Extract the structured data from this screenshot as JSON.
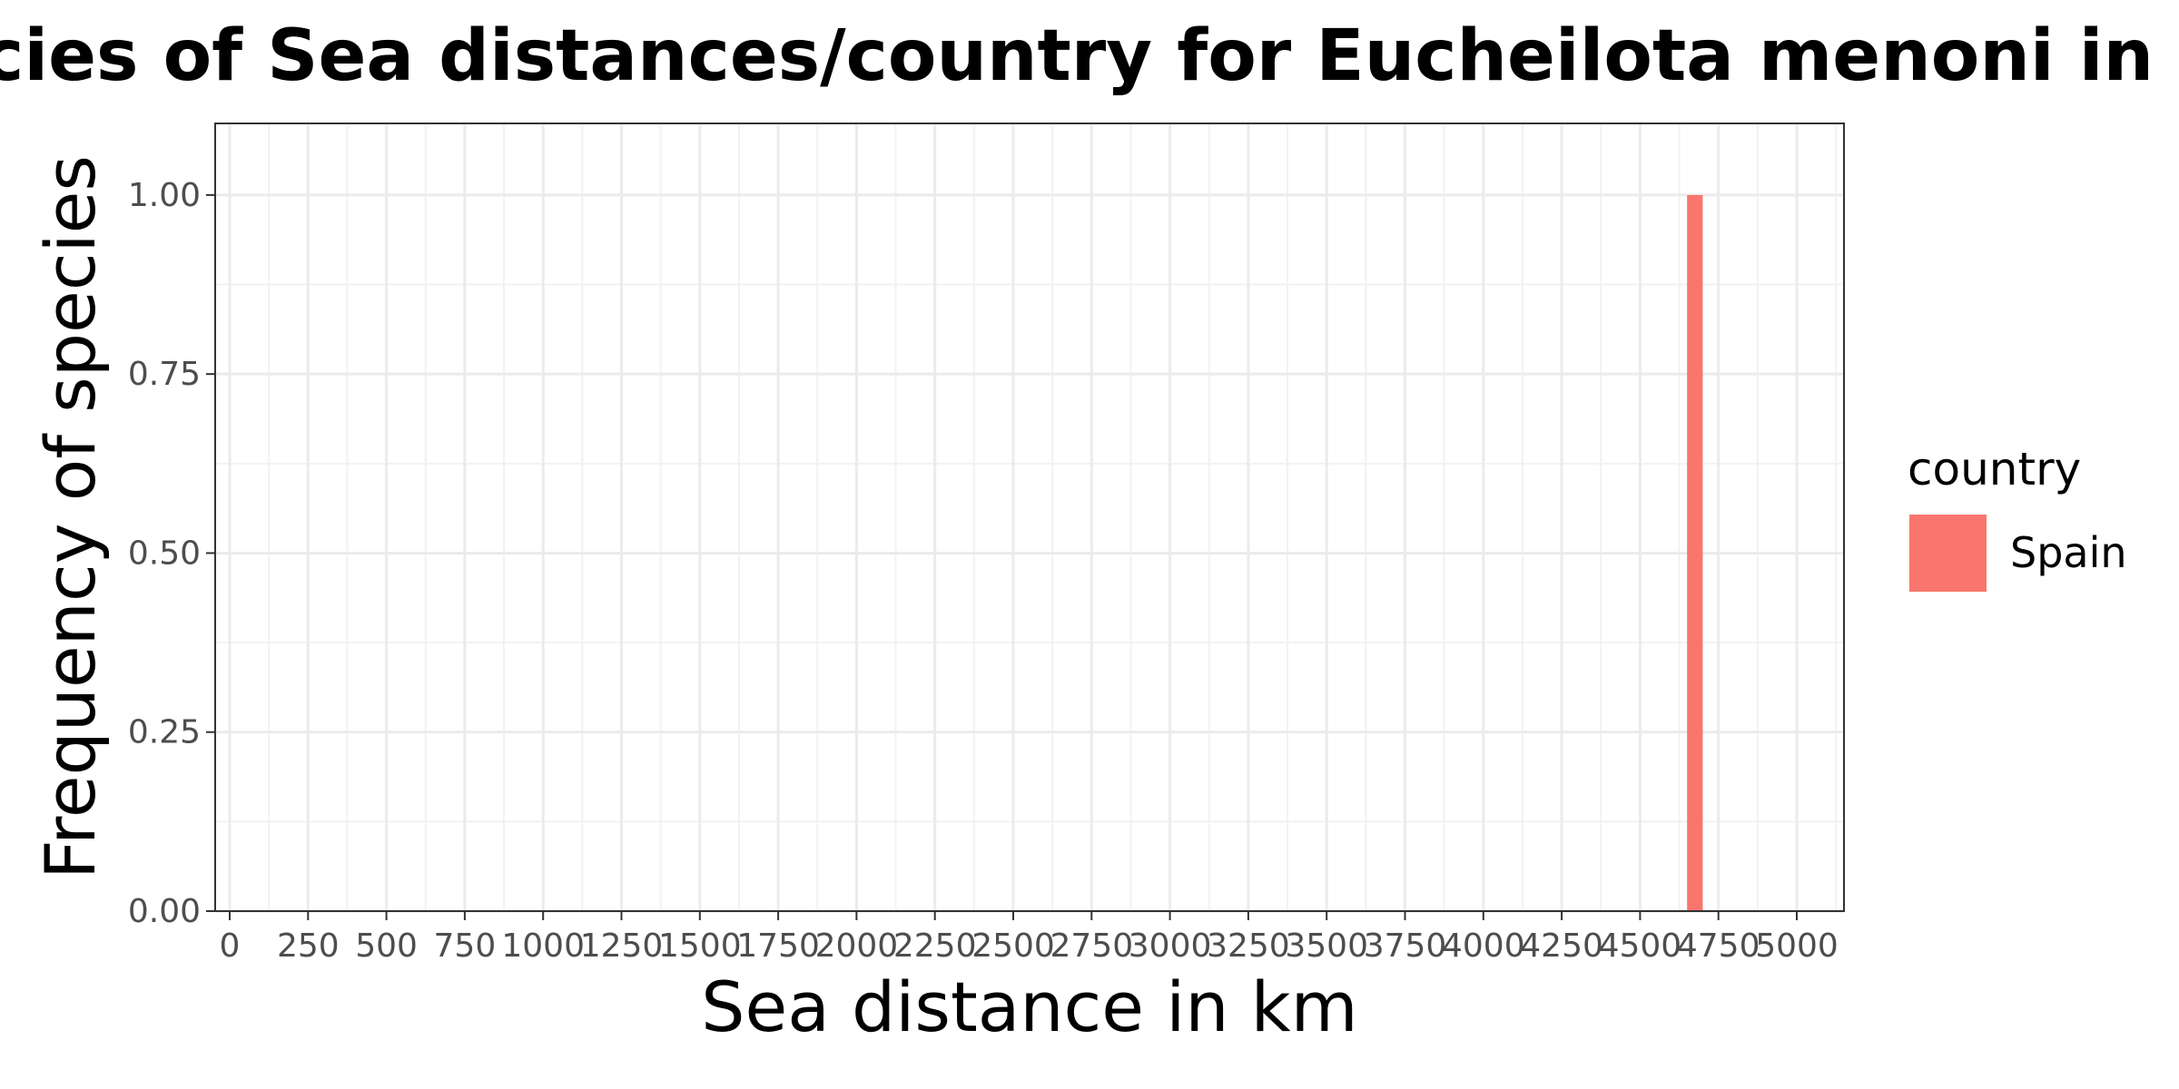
{
  "chart_data": {
    "type": "bar",
    "title": "Frequencies of Sea distances/country for Eucheilota menoni in Ravenna",
    "xlabel": "Sea distance in km",
    "ylabel": "Frequency of species",
    "xlim": [
      0,
      5150
    ],
    "ylim": [
      0,
      1.1
    ],
    "x_ticks": [
      "0",
      "250",
      "500",
      "750",
      "1000",
      "1250",
      "1500",
      "1750",
      "2000",
      "2250",
      "2500",
      "2750",
      "3000",
      "3250",
      "3500",
      "3750",
      "4000",
      "4250",
      "4500",
      "4750",
      "5000"
    ],
    "y_ticks": [
      "0.00",
      "0.25",
      "0.50",
      "0.75",
      "1.00"
    ],
    "grid": true,
    "legend_position": "right",
    "legend_title": "country",
    "series": [
      {
        "name": "Spain",
        "color": "#F8766D",
        "bars": [
          {
            "x_start": 4650,
            "x_end": 4700,
            "value": 1.0
          }
        ]
      }
    ]
  }
}
